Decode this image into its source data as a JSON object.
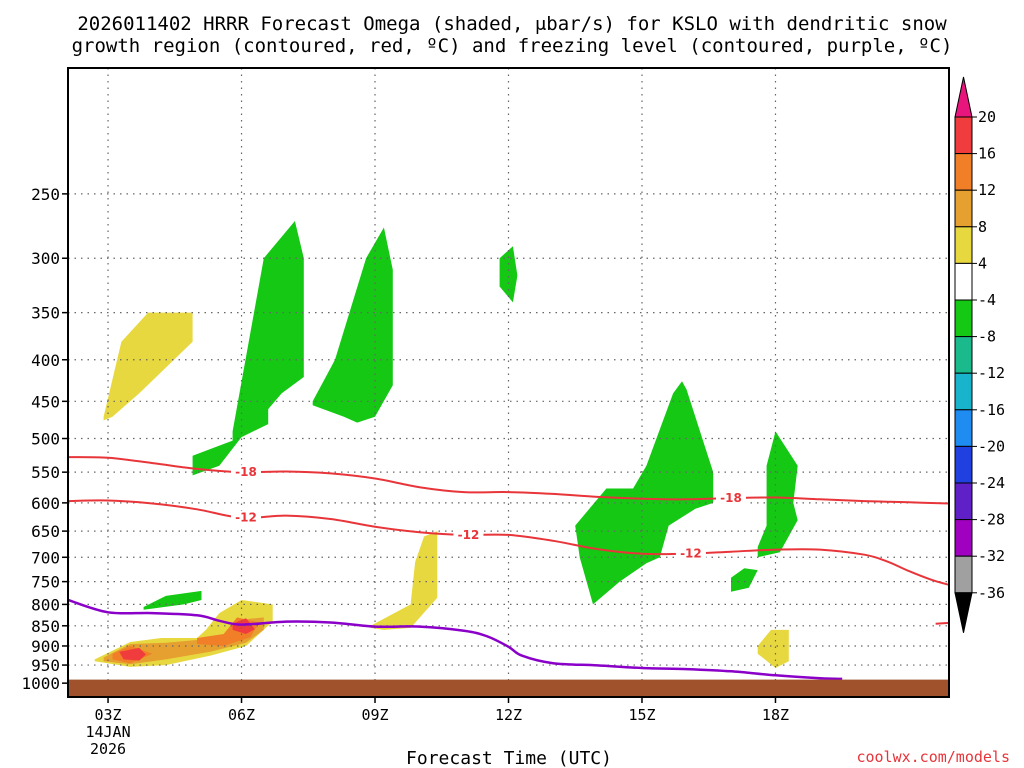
{
  "title": {
    "line1": "2026011402 HRRR Forecast Omega (shaded, μbar/s) for KSLO with dendritic snow",
    "line2": "growth region (contoured, red, ºC) and freezing level (contoured, purple, ºC)"
  },
  "credit": "coolwx.com/models",
  "colors": {
    "ground": "#a0522d",
    "snow_growth_contour": "#e8353a",
    "freezing_level": "#8a00c8",
    "frame": "#000000"
  },
  "chart_data": {
    "type": "heatmap",
    "xlabel": "Forecast Time (UTC)",
    "ylabel": "",
    "x_unit": "hours since 00Z 14JAN2026",
    "xlim": [
      2.1,
      21.9
    ],
    "y_unit": "hPa (log-pressure axis, surface at bottom)",
    "ylim": [
      1040,
      175
    ],
    "y_scale": "log",
    "grid": true,
    "x_ticks": [
      {
        "label": "03Z",
        "value": 3
      },
      {
        "label": "06Z",
        "value": 6
      },
      {
        "label": "09Z",
        "value": 9
      },
      {
        "label": "12Z",
        "value": 12
      },
      {
        "label": "15Z",
        "value": 15
      },
      {
        "label": "18Z",
        "value": 18
      }
    ],
    "x_date_lines": [
      "14JAN",
      "2026"
    ],
    "y_ticks": [
      250,
      300,
      350,
      400,
      450,
      500,
      550,
      600,
      650,
      700,
      750,
      800,
      850,
      900,
      950,
      1000
    ],
    "colorbar": {
      "levels": [
        20,
        16,
        12,
        8,
        4,
        -4,
        -8,
        -12,
        -16,
        -20,
        -24,
        -28,
        -32,
        -36
      ],
      "bands": [
        {
          "from": 16,
          "to": 20,
          "color": "#f03c3c"
        },
        {
          "from": 12,
          "to": 16,
          "color": "#f07f28"
        },
        {
          "from": 8,
          "to": 12,
          "color": "#e6a030"
        },
        {
          "from": 4,
          "to": 8,
          "color": "#e8d840"
        },
        {
          "from": -4,
          "to": 4,
          "color": "#ffffff"
        },
        {
          "from": -8,
          "to": -4,
          "color": "#14c814"
        },
        {
          "from": -12,
          "to": -8,
          "color": "#1aba8c"
        },
        {
          "from": -16,
          "to": -12,
          "color": "#18b4cc"
        },
        {
          "from": -20,
          "to": -16,
          "color": "#1e8cf0"
        },
        {
          "from": -24,
          "to": -20,
          "color": "#2040e0"
        },
        {
          "from": -28,
          "to": -24,
          "color": "#6020c8"
        },
        {
          "from": -32,
          "to": -28,
          "color": "#a000c0"
        },
        {
          "from": -36,
          "to": -32,
          "color": "#a0a0a0"
        }
      ],
      "extend_max_color": "#e8157d",
      "extend_min_color": "#000000"
    },
    "contours": [
      {
        "label": "-18",
        "x": [
          2.1,
          3,
          4,
          5,
          6,
          7,
          8,
          9,
          10,
          11,
          12,
          13,
          14,
          15,
          16,
          17,
          18,
          19,
          20,
          21,
          21.9
        ],
        "y": [
          527,
          528,
          536,
          545,
          550,
          549,
          552,
          560,
          574,
          582,
          582,
          585,
          590,
          593,
          594,
          592,
          591,
          594,
          597,
          599,
          601
        ],
        "labels_at": [
          6.1,
          17.0
        ]
      },
      {
        "label": "-12",
        "x": [
          2.1,
          3,
          4,
          5,
          6,
          7,
          8,
          9,
          10,
          11,
          12,
          13,
          14,
          15,
          16,
          17,
          18,
          19,
          20,
          20.5,
          21,
          21.5,
          21.9
        ],
        "y": [
          597,
          596,
          601,
          611,
          626,
          622,
          628,
          642,
          652,
          657,
          657,
          668,
          684,
          693,
          693,
          689,
          685,
          685,
          695,
          708,
          728,
          746,
          757
        ],
        "labels_at": [
          6.1,
          11.1,
          16.1
        ]
      }
    ],
    "freezing_level": {
      "x": [
        2.1,
        3,
        4,
        5,
        5.5,
        6,
        7,
        8,
        9,
        10,
        11,
        11.5,
        12,
        12.3,
        13,
        14,
        15,
        16,
        17,
        18,
        19,
        19.5
      ],
      "y": [
        790,
        818,
        820,
        825,
        838,
        847,
        840,
        842,
        852,
        852,
        862,
        875,
        902,
        925,
        945,
        951,
        958,
        961,
        967,
        978,
        986,
        988
      ]
    },
    "ground_top_hPa": 990,
    "shaded_regions": [
      {
        "level": -4,
        "x": [
          4.9,
          5.8,
          5.8,
          6.5,
          7.2,
          7.4,
          7.4,
          6.9,
          6.6,
          6.6,
          6.0,
          5.5,
          4.9
        ],
        "y": [
          525,
          503,
          490,
          300,
          270,
          300,
          420,
          440,
          460,
          480,
          498,
          540,
          555
        ]
      },
      {
        "level": -4,
        "x": [
          7.6,
          8.1,
          8.8,
          9.2,
          9.4,
          9.4,
          9.0,
          8.6,
          8.3,
          7.6
        ],
        "y": [
          450,
          400,
          300,
          275,
          310,
          430,
          470,
          478,
          470,
          455
        ]
      },
      {
        "level": -4,
        "x": [
          11.8,
          12.1,
          12.2,
          12.1,
          11.8
        ],
        "y": [
          300,
          290,
          315,
          340,
          325
        ]
      },
      {
        "level": -4,
        "x": [
          13.5,
          14.2,
          14.2,
          14.8,
          15.1,
          15.7,
          15.9,
          16.0,
          16.6,
          16.6,
          16.2,
          15.6,
          15.4,
          15.1,
          14.5,
          13.9,
          13.6
        ],
        "y": [
          640,
          576,
          576,
          576,
          540,
          440,
          425,
          435,
          550,
          600,
          610,
          640,
          700,
          712,
          750,
          800,
          700
        ]
      },
      {
        "level": -4,
        "x": [
          17.0,
          17.3,
          17.6,
          17.4,
          17.0
        ],
        "y": [
          742,
          722,
          726,
          763,
          772
        ]
      },
      {
        "level": -4,
        "x": [
          17.6,
          17.8,
          17.8,
          18.0,
          18.5,
          18.4,
          18.5,
          18.1,
          17.6
        ],
        "y": [
          680,
          640,
          540,
          490,
          540,
          600,
          630,
          690,
          700
        ]
      },
      {
        "level": -4,
        "x": [
          3.8,
          4.3,
          5.1,
          5.1,
          4.7,
          3.8
        ],
        "y": [
          806,
          781,
          770,
          790,
          800,
          812
        ]
      },
      {
        "level": 4,
        "x": [
          2.9,
          3.3,
          3.9,
          4.9,
          4.9,
          3.7,
          3.1,
          2.9
        ],
        "y": [
          470,
          380,
          350,
          350,
          380,
          440,
          470,
          475
        ]
      },
      {
        "level": 4,
        "x": [
          2.7,
          3.5,
          4.2,
          5.0,
          5.2,
          5.5,
          6.0,
          6.7,
          6.7,
          6.1,
          5.3,
          4.3,
          3.5,
          2.7
        ],
        "y": [
          935,
          890,
          880,
          880,
          860,
          820,
          790,
          800,
          840,
          900,
          925,
          950,
          955,
          940
        ]
      },
      {
        "level": 4,
        "x": [
          8.9,
          9.8,
          9.9,
          10.1,
          10.4,
          10.4,
          9.8,
          9.2,
          8.9
        ],
        "y": [
          850,
          800,
          710,
          660,
          650,
          785,
          855,
          860,
          855
        ]
      },
      {
        "level": 4,
        "x": [
          17.6,
          17.9,
          18.3,
          18.3,
          18.0,
          17.6
        ],
        "y": [
          900,
          860,
          860,
          940,
          958,
          920
        ]
      },
      {
        "level": 8,
        "x": [
          2.9,
          3.5,
          4.3,
          5.5,
          6.0,
          6.5,
          6.5,
          6.1,
          5.3,
          4.3,
          3.5,
          2.9
        ],
        "y": [
          930,
          895,
          892,
          880,
          835,
          830,
          860,
          892,
          915,
          935,
          948,
          940
        ]
      },
      {
        "level": 12,
        "x": [
          3.1,
          3.5,
          4.0,
          3.5,
          3.1
        ],
        "y": [
          920,
          900,
          920,
          945,
          935
        ]
      },
      {
        "level": 12,
        "x": [
          5.0,
          5.6,
          5.9,
          6.4,
          6.2,
          5.6,
          5.0
        ],
        "y": [
          880,
          870,
          830,
          842,
          878,
          900,
          895
        ]
      },
      {
        "level": 16,
        "x": [
          3.25,
          3.7,
          3.85,
          3.7,
          3.35
        ],
        "y": [
          915,
          905,
          922,
          938,
          935
        ]
      },
      {
        "level": 16,
        "x": [
          5.8,
          6.1,
          6.3,
          6.1,
          5.8
        ],
        "y": [
          845,
          832,
          858,
          870,
          860
        ]
      }
    ]
  }
}
